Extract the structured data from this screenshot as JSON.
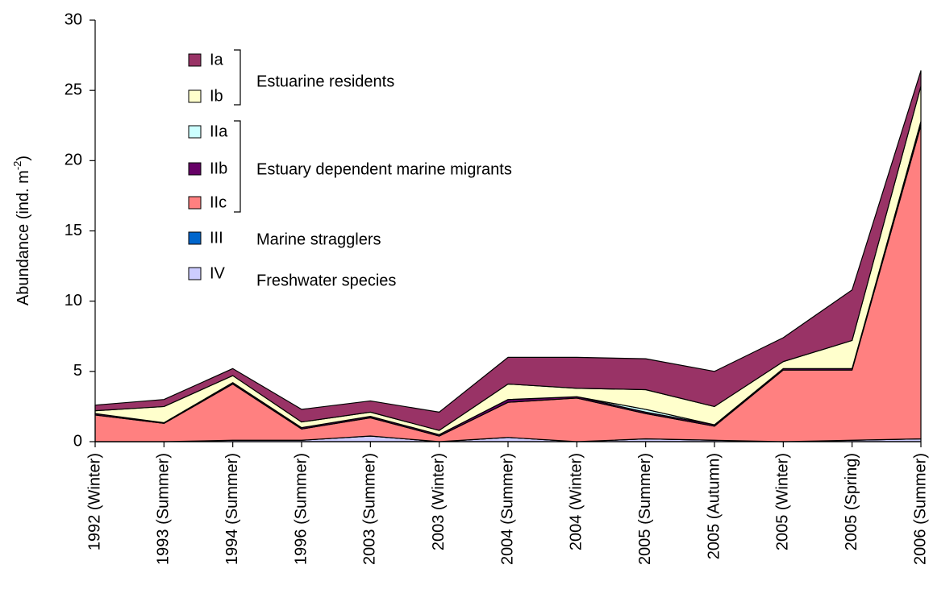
{
  "chart_data": {
    "type": "stacked_area",
    "y_label": [
      "Abundance (ind. m",
      "-2",
      ")"
    ],
    "categories": [
      "1992 (Winter)",
      "1993 (Summer)",
      "1994 (Summer)",
      "1996 (Summer)",
      "2003 (Summer)",
      "2003 (Winter)",
      "2004 (Summer)",
      "2004 (Winter)",
      "2005 (Summer)",
      "2005 (Autumn)",
      "2005 (Winter)",
      "2005 (Spring)",
      "2006 (Summer)"
    ],
    "ylim": [
      0,
      30
    ],
    "yticks": [
      0,
      5,
      10,
      15,
      20,
      25,
      30
    ],
    "series": [
      {
        "name": "IV",
        "color": "#ccccff",
        "values": [
          0,
          0,
          0.1,
          0.1,
          0.4,
          0,
          0.3,
          0,
          0.2,
          0.1,
          0,
          0.1,
          0.2
        ]
      },
      {
        "name": "III",
        "color": "#0066cc",
        "values": [
          0,
          0,
          0,
          0,
          0,
          0,
          0,
          0,
          0,
          0,
          0,
          0,
          0
        ]
      },
      {
        "name": "IIc",
        "color": "#ff8080",
        "values": [
          1.9,
          1.3,
          4.0,
          0.8,
          1.3,
          0.4,
          2.5,
          3.1,
          1.8,
          1.0,
          5.1,
          5.0,
          22.3
        ]
      },
      {
        "name": "IIb",
        "color": "#660066",
        "values": [
          0.1,
          0.05,
          0.1,
          0.1,
          0.1,
          0.1,
          0.2,
          0.1,
          0.1,
          0.1,
          0.1,
          0.1,
          0.2
        ]
      },
      {
        "name": "IIa",
        "color": "#ccffff",
        "values": [
          0,
          0,
          0,
          0,
          0,
          0,
          0,
          0,
          0.2,
          0,
          0,
          0,
          0.1
        ]
      },
      {
        "name": "Ib",
        "color": "#ffffcc",
        "values": [
          0.2,
          1.15,
          0.5,
          0.4,
          0.3,
          0.3,
          1.1,
          0.6,
          1.4,
          1.3,
          0.5,
          2.0,
          2.5
        ]
      },
      {
        "name": "Ia",
        "color": "#993366",
        "values": [
          0.4,
          0.5,
          0.5,
          0.9,
          0.8,
          1.3,
          1.9,
          2.2,
          2.2,
          2.5,
          1.7,
          3.6,
          1.1
        ]
      }
    ],
    "legend_groups": [
      "Estuarine residents",
      "Estuary dependent marine migrants",
      "Marine stragglers",
      "Freshwater species"
    ]
  }
}
